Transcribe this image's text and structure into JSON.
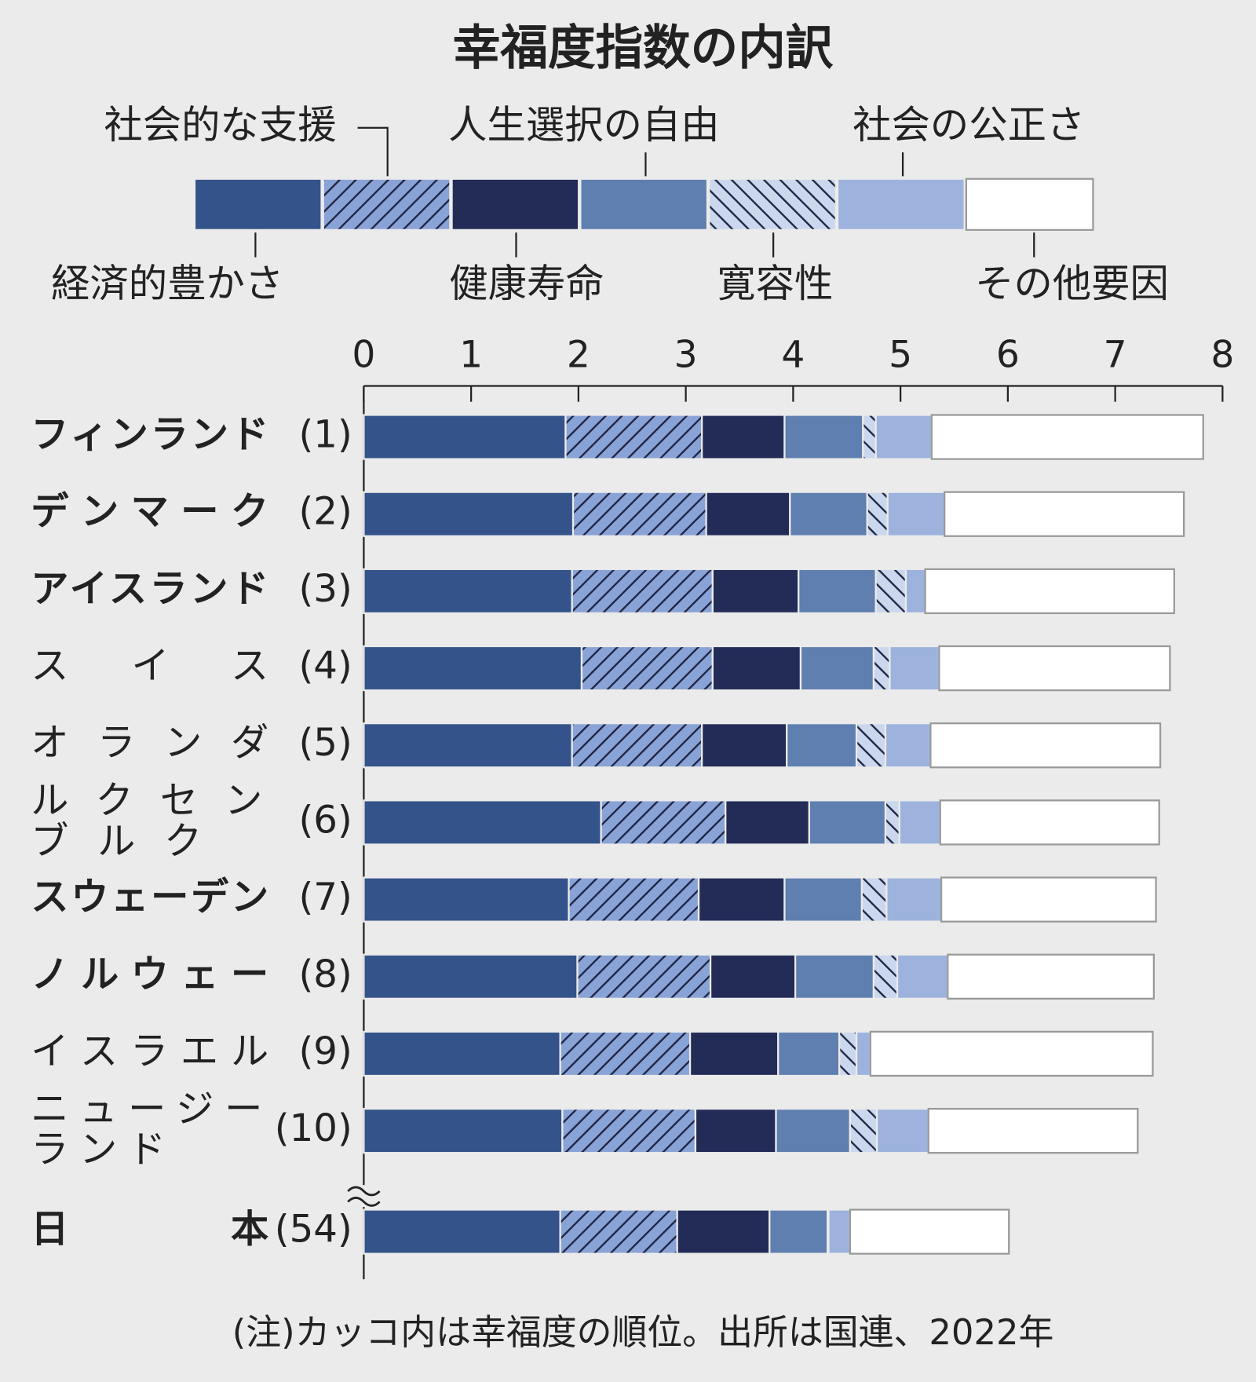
{
  "chart_data": {
    "type": "bar",
    "orientation": "horizontal",
    "stacked": true,
    "title": "幸福度指数の内訳",
    "categories": [
      "フィンランド",
      "デンマーク",
      "アイスランド",
      "スイス",
      "オランダ",
      "ルクセンブルク",
      "スウェーデン",
      "ノルウェー",
      "イスラエル",
      "ニュージーランド",
      "日本"
    ],
    "ranks": [
      "(1)",
      "(2)",
      "(3)",
      "(4)",
      "(5)",
      "(6)",
      "(7)",
      "(8)",
      "(9)",
      "(10)",
      "(54)"
    ],
    "bold": [
      true,
      true,
      true,
      false,
      false,
      false,
      true,
      true,
      false,
      false,
      true
    ],
    "series": [
      {
        "name": "経済的豊かさ",
        "color": "#34538a",
        "values": [
          1.88,
          1.95,
          1.94,
          2.03,
          1.94,
          2.21,
          1.91,
          1.99,
          1.83,
          1.85,
          1.83
        ]
      },
      {
        "name": "社会的な支援",
        "color": "#8aa3d6",
        "hatch": "/",
        "values": [
          1.27,
          1.24,
          1.31,
          1.22,
          1.21,
          1.16,
          1.21,
          1.24,
          1.21,
          1.24,
          1.09
        ]
      },
      {
        "name": "健康寿命",
        "color": "#232c57",
        "values": [
          0.77,
          0.78,
          0.8,
          0.82,
          0.79,
          0.78,
          0.8,
          0.79,
          0.82,
          0.75,
          0.86
        ]
      },
      {
        "name": "人生選択の自由",
        "color": "#5f7fb0",
        "values": [
          0.73,
          0.72,
          0.72,
          0.68,
          0.65,
          0.71,
          0.72,
          0.73,
          0.57,
          0.69,
          0.54
        ]
      },
      {
        "name": "寛容性",
        "color": "#cbd7ec",
        "hatch": "\\",
        "values": [
          0.12,
          0.19,
          0.28,
          0.15,
          0.27,
          0.13,
          0.23,
          0.22,
          0.16,
          0.25,
          0.01
        ]
      },
      {
        "name": "社会の公正さ",
        "color": "#9db3de",
        "values": [
          0.52,
          0.53,
          0.18,
          0.46,
          0.42,
          0.38,
          0.51,
          0.47,
          0.13,
          0.48,
          0.2
        ]
      },
      {
        "name": "その他要因",
        "color": "#ffffff",
        "values": [
          2.53,
          2.23,
          2.32,
          2.15,
          2.14,
          2.04,
          2.0,
          1.92,
          2.63,
          1.95,
          1.48
        ]
      }
    ],
    "xlim": [
      0,
      8
    ],
    "xticks": [
      0,
      1,
      2,
      3,
      4,
      5,
      6,
      7,
      8
    ],
    "note": "(注)カッコ内は幸福度の順位。出所は国連、2022年"
  }
}
